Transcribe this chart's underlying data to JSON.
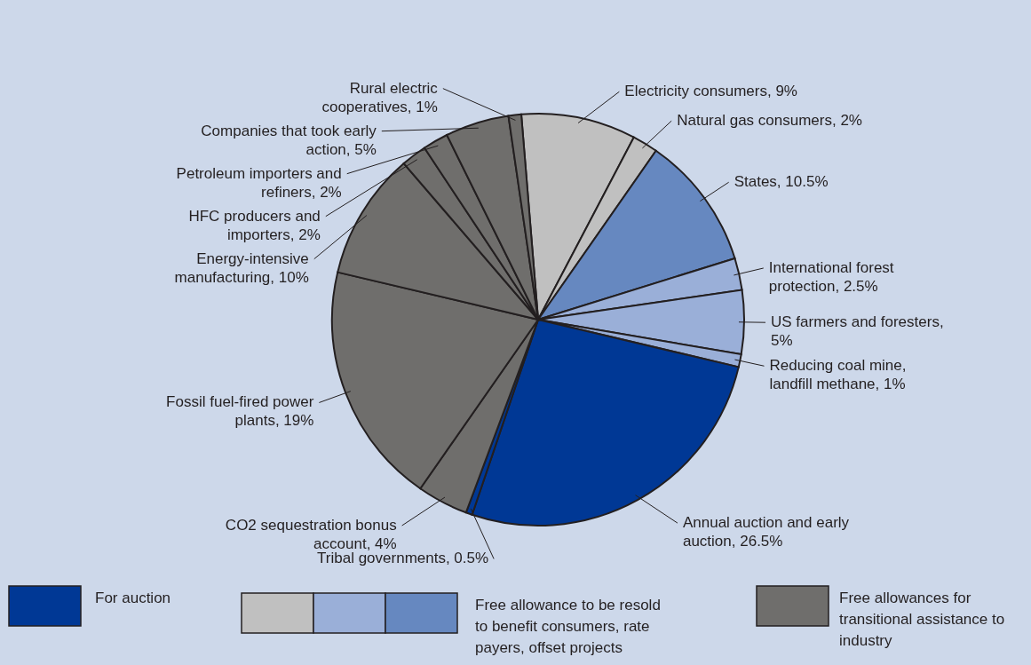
{
  "chart_data": {
    "type": "pie",
    "categories": [
      "Electricity consumers, 9%",
      "Natural gas consumers, 2%",
      "States, 10.5%",
      "International forest protection, 2.5%",
      "US farmers and foresters, 5%",
      "Reducing coal mine, landfill methane, 1%",
      "Annual auction and early auction, 26.5%",
      "Tribal governments, 0.5%",
      "CO2 sequestration bonus account, 4%",
      "Fossil fuel-fired power plants, 19%",
      "Energy-intensive manufacturing, 10%",
      "HFC producers and importers, 2%",
      "Petroleum importers and refiners, 2%",
      "Companies that took early action, 5%",
      "Rural electric cooperatives, 1%"
    ],
    "values": [
      9,
      2,
      10.5,
      2.5,
      5,
      1,
      26.5,
      0.5,
      4,
      19,
      10,
      2,
      2,
      5,
      1
    ],
    "colors": [
      "#c0c0c0",
      "#c0c0c0",
      "#6688c0",
      "#9aafd8",
      "#9aafd8",
      "#9aafd8",
      "#003895",
      "#003895",
      "#6f6e6c",
      "#6f6e6c",
      "#6f6e6c",
      "#6f6e6c",
      "#6f6e6c",
      "#6f6e6c",
      "#6f6e6c"
    ],
    "annotations": [
      "For auction",
      "Free allowance to be resold to benefit consumers, rate payers, offset projects",
      "Free allowances for transitional assistance to industry"
    ]
  }
}
